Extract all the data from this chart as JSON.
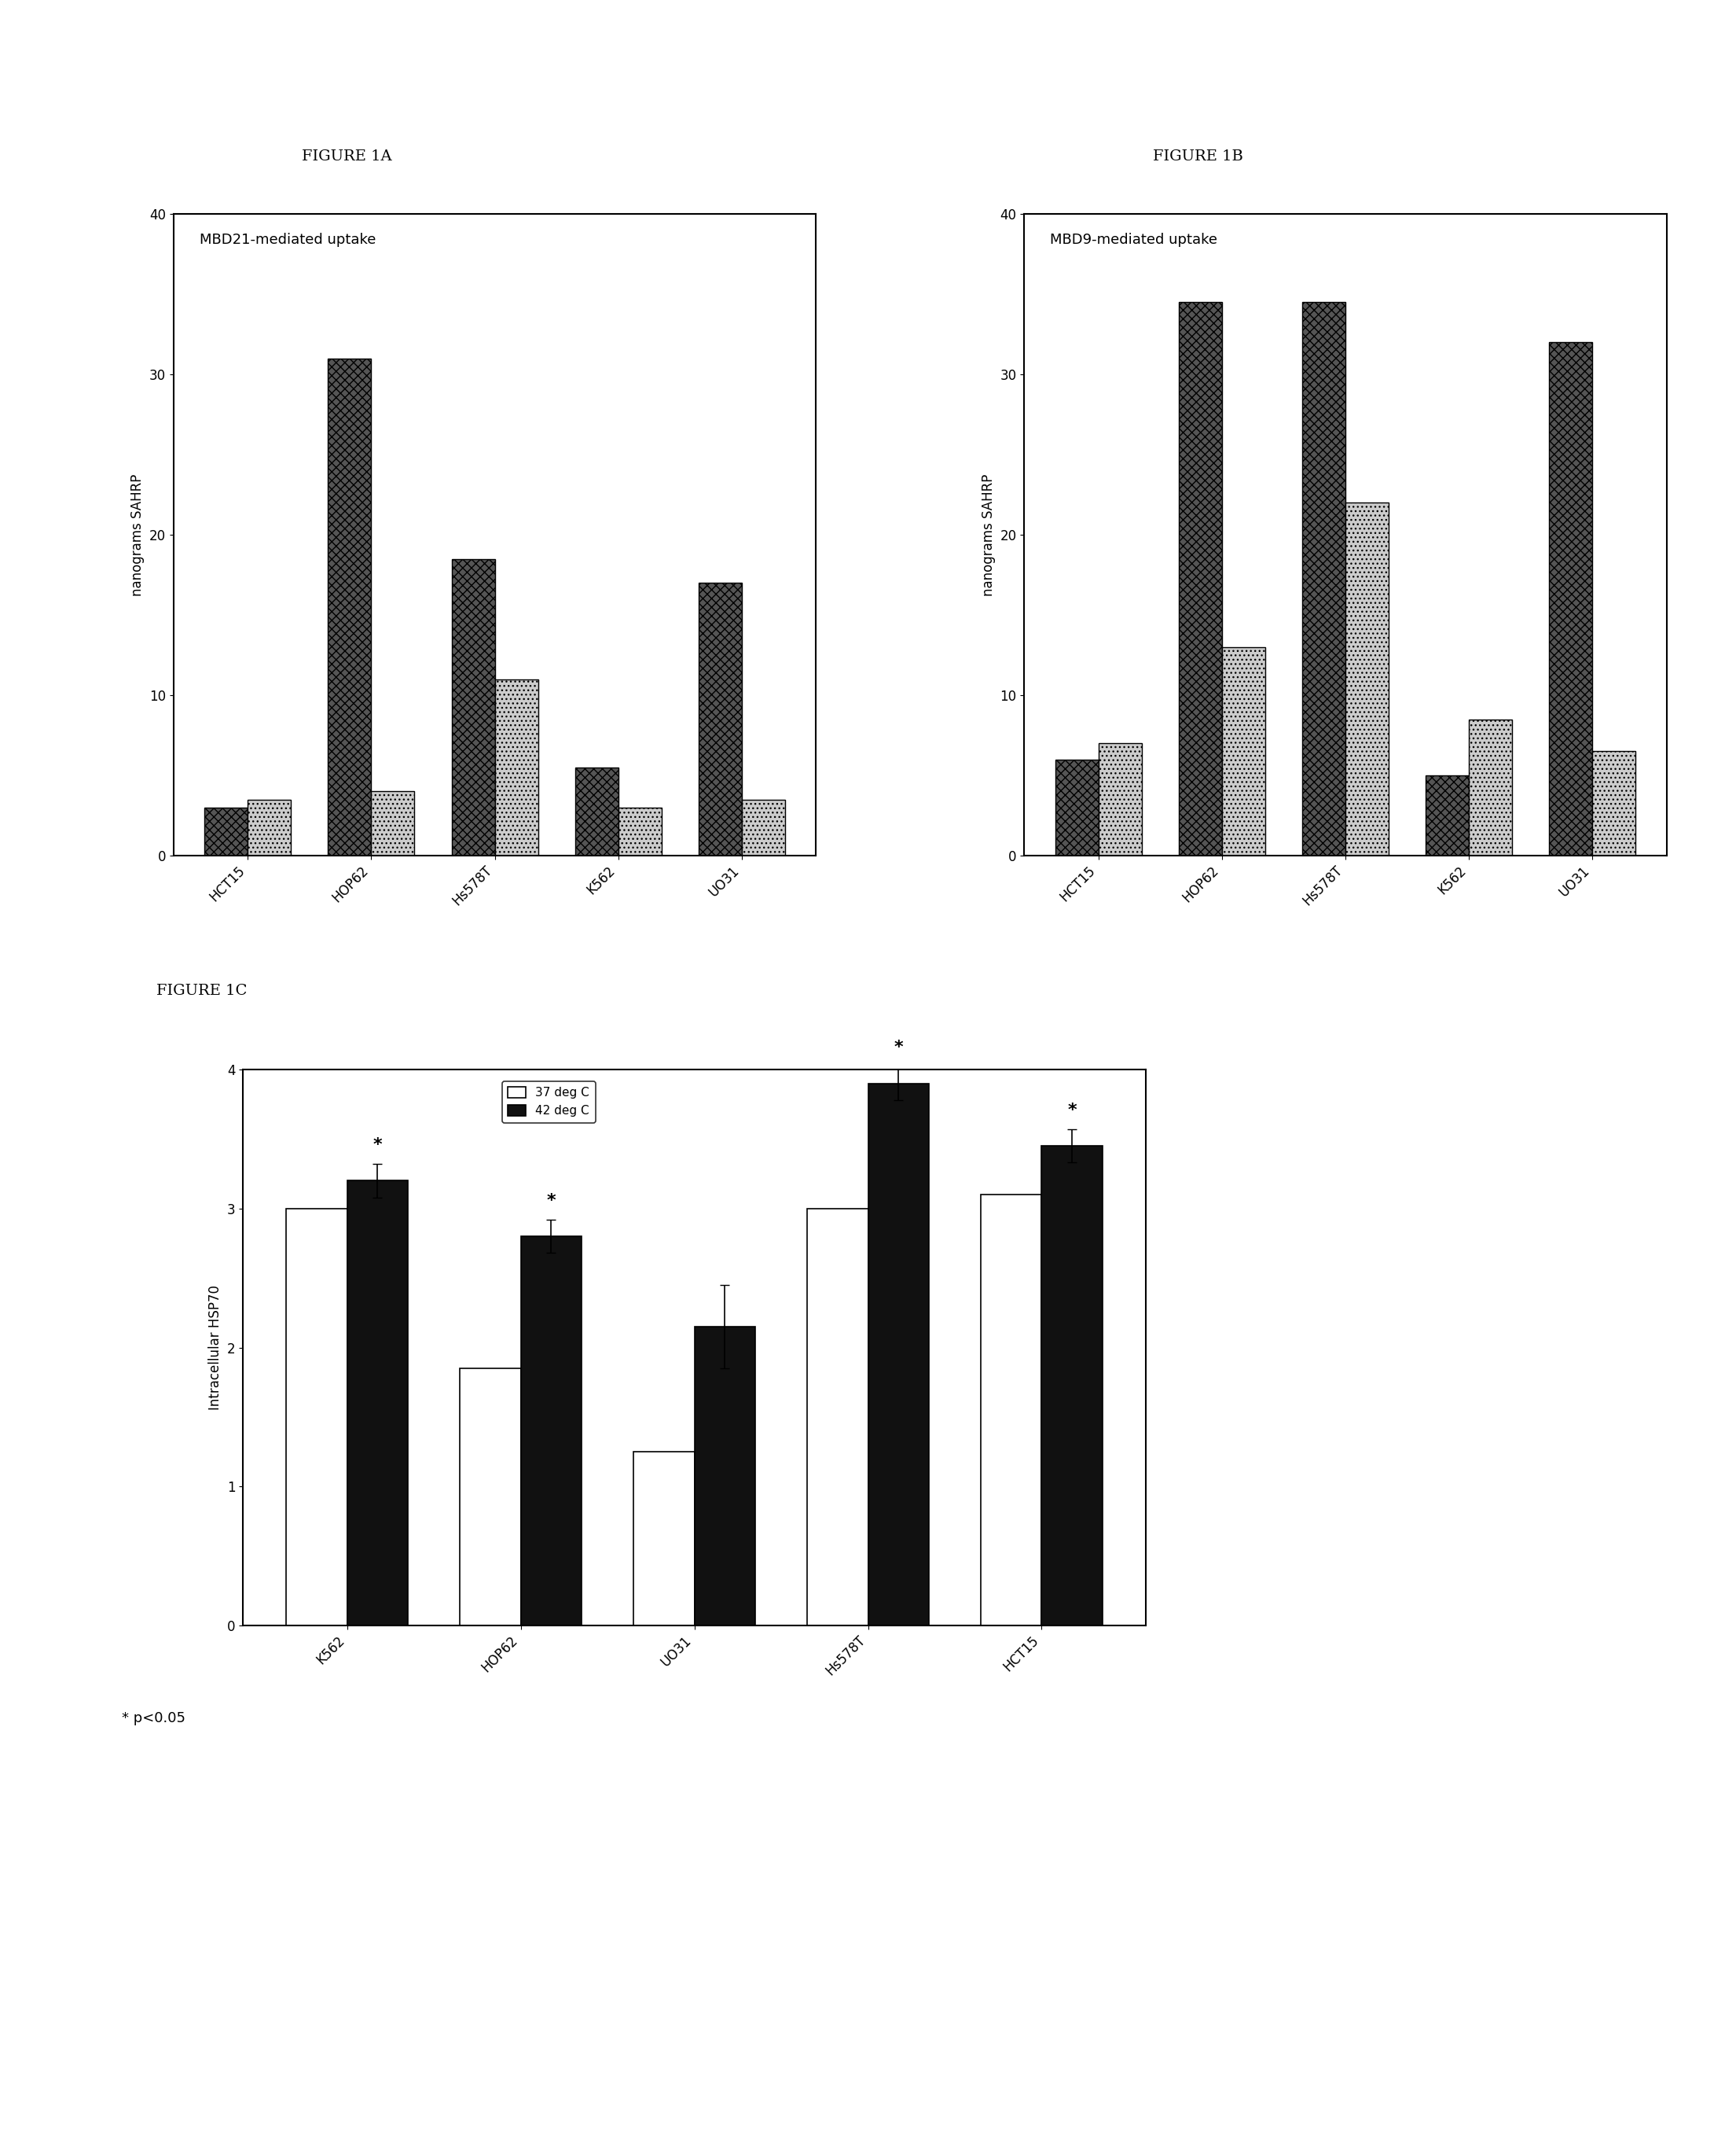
{
  "fig1a": {
    "title": "FIGURE 1A",
    "inner_label": "MBD21-mediated uptake",
    "ylabel": "nanograms SAHRP",
    "categories": [
      "HCT15",
      "HOP62",
      "Hs578T",
      "K562",
      "UO31"
    ],
    "values_dark": [
      3.0,
      31.0,
      18.5,
      5.5,
      17.0
    ],
    "values_light": [
      3.5,
      4.0,
      11.0,
      3.0,
      3.5
    ],
    "ylim": [
      0,
      40
    ],
    "yticks": [
      0,
      10,
      20,
      30,
      40
    ]
  },
  "fig1b": {
    "title": "FIGURE 1B",
    "inner_label": "MBD9-mediated uptake",
    "ylabel": "nanograms SAHRP",
    "categories": [
      "HCT15",
      "HOP62",
      "Hs578T",
      "K562",
      "UO31"
    ],
    "values_dark": [
      6.0,
      34.5,
      34.5,
      5.0,
      32.0
    ],
    "values_light": [
      7.0,
      13.0,
      22.0,
      8.5,
      6.5
    ],
    "ylim": [
      0,
      40
    ],
    "yticks": [
      0,
      10,
      20,
      30,
      40
    ]
  },
  "fig1c": {
    "title": "FIGURE 1C",
    "ylabel": "Intracellular HSP70",
    "categories": [
      "K562",
      "HOP62",
      "UO31",
      "Hs578T",
      "HCT15"
    ],
    "values_37": [
      3.0,
      1.85,
      1.25,
      3.0,
      3.1
    ],
    "values_42": [
      3.2,
      2.8,
      2.15,
      3.9,
      3.45
    ],
    "errors_42": [
      0.12,
      0.12,
      0.3,
      0.12,
      0.12
    ],
    "asterisks": [
      true,
      true,
      false,
      true,
      true
    ],
    "color_37": "#ffffff",
    "color_42": "#111111",
    "ylim": [
      0,
      4
    ],
    "yticks": [
      0,
      1,
      2,
      3,
      4
    ],
    "legend_37": "37 deg C",
    "legend_42": "42 deg C",
    "footnote": "* p<0.05"
  },
  "background_color": "#ffffff",
  "bar_color_dark": "#555555",
  "bar_color_light": "#cccccc"
}
